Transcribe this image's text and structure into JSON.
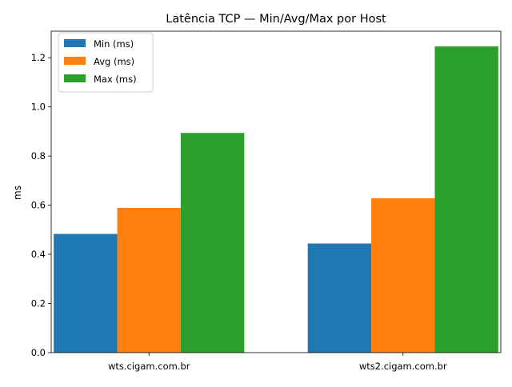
{
  "chart_data": {
    "type": "bar",
    "title": "Latência TCP — Min/Avg/Max por Host",
    "xlabel": "",
    "ylabel": "ms",
    "categories": [
      "wts.cigam.com.br",
      "wts2.cigam.com.br"
    ],
    "series": [
      {
        "name": "Min (ms)",
        "color": "#1f77b4",
        "values": [
          0.483,
          0.444
        ]
      },
      {
        "name": "Avg (ms)",
        "color": "#ff7f0e",
        "values": [
          0.589,
          0.628
        ]
      },
      {
        "name": "Max (ms)",
        "color": "#2ca02c",
        "values": [
          0.894,
          1.246
        ]
      }
    ],
    "ylim": [
      0,
      1.308
    ],
    "yticks": [
      0.0,
      0.2,
      0.4,
      0.6,
      0.8,
      1.0,
      1.2
    ],
    "ytick_labels": [
      "0.0",
      "0.2",
      "0.4",
      "0.6",
      "0.8",
      "1.0",
      "1.2"
    ],
    "grid": false,
    "legend_position": "top-left"
  }
}
